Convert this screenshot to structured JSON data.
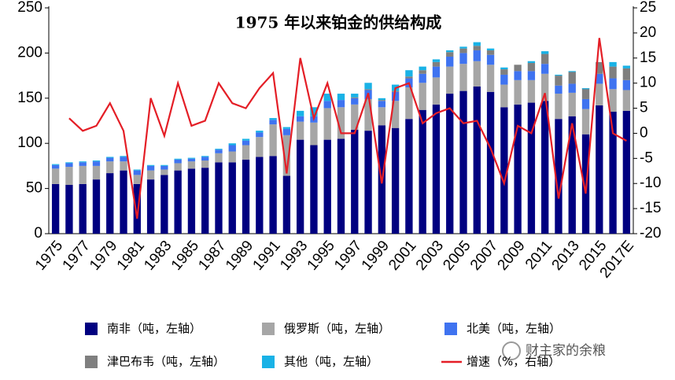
{
  "chart_data": {
    "type": "stacked_bar_line",
    "title": "1975 年以来铂金的供给构成",
    "categories": [
      "1975",
      null,
      "1977",
      null,
      "1979",
      null,
      "1981",
      null,
      "1983",
      null,
      "1985",
      null,
      "1987",
      null,
      "1989",
      null,
      "1991",
      null,
      "1993",
      null,
      "1995",
      null,
      "1997",
      null,
      "1999",
      null,
      "2001",
      null,
      "2003",
      null,
      "2005",
      null,
      "2007",
      null,
      "2009",
      null,
      "2011",
      null,
      "2013",
      null,
      "2015",
      null,
      "2017E"
    ],
    "series": [
      {
        "name": "南非（吨，左轴）",
        "color": "#000080",
        "values": [
          55,
          54,
          55,
          60,
          67,
          70,
          55,
          60,
          65,
          70,
          72,
          73,
          79,
          79,
          82,
          85,
          86,
          64,
          104,
          98,
          104,
          105,
          115,
          114,
          120,
          117,
          127,
          137,
          143,
          155,
          158,
          163,
          157,
          140,
          143,
          145,
          147,
          127,
          130,
          110,
          142,
          135,
          136
        ]
      },
      {
        "name": "俄罗斯（吨，左轴）",
        "color": "#a6a6a6",
        "values": [
          17,
          20,
          20,
          15,
          13,
          10,
          10,
          10,
          6,
          8,
          8,
          8,
          10,
          12,
          16,
          22,
          35,
          45,
          20,
          25,
          35,
          35,
          28,
          35,
          20,
          30,
          35,
          30,
          30,
          30,
          30,
          28,
          30,
          25,
          27,
          25,
          30,
          28,
          26,
          28,
          24,
          25,
          23
        ]
      },
      {
        "name": "北美（吨，左轴）",
        "color": "#3f73f0",
        "values": [
          4,
          4,
          4,
          5,
          4,
          5,
          5,
          5,
          4,
          4,
          3,
          4,
          4,
          7,
          5,
          5,
          5,
          7,
          6,
          7,
          8,
          8,
          7,
          10,
          7,
          10,
          10,
          10,
          12,
          11,
          12,
          12,
          11,
          11,
          10,
          10,
          11,
          9,
          10,
          11,
          11,
          12,
          11
        ]
      },
      {
        "name": "津巴布韦（吨，左轴）",
        "color": "#7f7f7f",
        "values": [
          0,
          0,
          0,
          0,
          0,
          0,
          0,
          0,
          0,
          0,
          0,
          0,
          0,
          0,
          0,
          0,
          0,
          0,
          0,
          0,
          0,
          0,
          1,
          1,
          1,
          1,
          2,
          4,
          5,
          5,
          5,
          5,
          5,
          6,
          7,
          9,
          11,
          11,
          13,
          12,
          13,
          13,
          13
        ]
      },
      {
        "name": "其他（吨，左轴）",
        "color": "#19b2e6",
        "values": [
          1,
          1,
          1,
          1,
          1,
          1,
          1,
          1,
          1,
          1,
          1,
          1,
          1,
          2,
          2,
          2,
          2,
          2,
          6,
          10,
          8,
          7,
          4,
          7,
          2,
          7,
          7,
          4,
          3,
          2,
          2,
          4,
          2,
          2,
          0,
          2,
          3,
          1,
          1,
          -1,
          0,
          5,
          3
        ]
      },
      {
        "name": "增速（%，右轴）",
        "color": "#e41e26",
        "axis": "y2",
        "type": "line",
        "values": [
          null,
          3,
          0.5,
          1.5,
          6,
          0.5,
          -17,
          7,
          -0.5,
          10,
          1.5,
          2.5,
          10,
          6,
          5,
          9,
          12,
          -8,
          15,
          3,
          10,
          0,
          0,
          8,
          -10,
          9,
          10,
          2,
          4,
          5,
          2,
          2.5,
          -3,
          -10,
          1.5,
          0,
          8,
          -13,
          2,
          -12,
          19,
          0,
          -1.5
        ]
      }
    ],
    "ylim": [
      0,
      250
    ],
    "yticks": [
      0,
      50,
      100,
      150,
      200,
      250
    ],
    "y2lim": [
      -20,
      25
    ],
    "y2ticks": [
      -20,
      -15,
      -10,
      -5,
      0,
      5,
      10,
      15,
      20,
      25
    ],
    "watermark": "财主家的余粮"
  }
}
